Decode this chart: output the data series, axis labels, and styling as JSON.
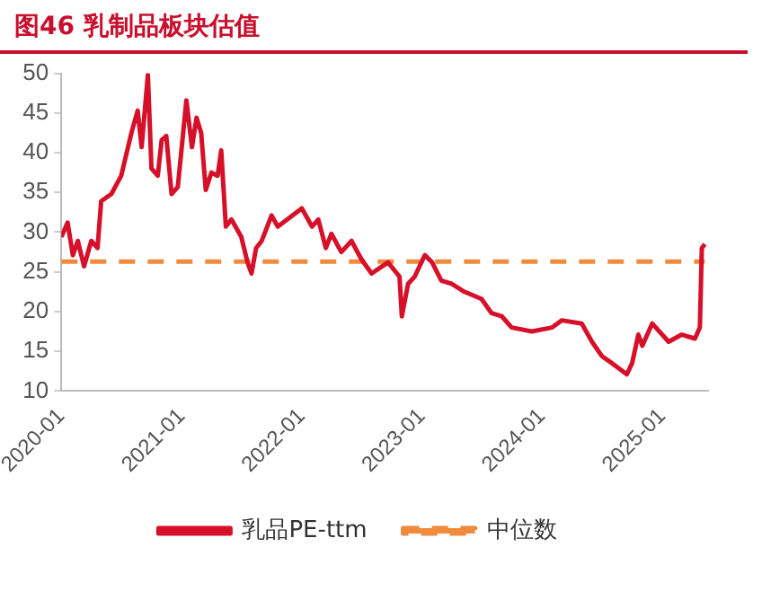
{
  "chart_data": {
    "type": "line",
    "title": "图46  乳制品板块估值",
    "xlim": [
      "2020-01",
      "2025-05-20"
    ],
    "xticks": [
      "2020-01",
      "2021-01",
      "2022-01",
      "2023-01",
      "2024-01",
      "2025-01"
    ],
    "ylim": [
      10,
      50
    ],
    "yticks": [
      10,
      15,
      20,
      25,
      30,
      35,
      40,
      45,
      50
    ],
    "grid": false,
    "legend": "bottom",
    "marker": "none",
    "series": [
      {
        "name": "乳品PE-ttm",
        "color": "#d7102a",
        "line_style": "solid",
        "x": [
          "2020-01-01",
          "2020-01-20",
          "2020-02-05",
          "2020-02-20",
          "2020-03-10",
          "2020-04-01",
          "2020-04-20",
          "2020-05-01",
          "2020-06-01",
          "2020-07-01",
          "2020-08-01",
          "2020-08-20",
          "2020-09-01",
          "2020-09-20",
          "2020-10-01",
          "2020-10-20",
          "2020-11-01",
          "2020-11-15",
          "2020-12-01",
          "2020-12-20",
          "2021-01-01",
          "2021-01-15",
          "2021-02-01",
          "2021-02-15",
          "2021-03-01",
          "2021-03-15",
          "2021-04-01",
          "2021-04-20",
          "2021-05-01",
          "2021-05-15",
          "2021-06-01",
          "2021-07-01",
          "2021-07-20",
          "2021-08-01",
          "2021-08-15",
          "2021-09-01",
          "2021-10-01",
          "2021-10-20",
          "2022-01-01",
          "2022-02-01",
          "2022-02-20",
          "2022-03-15",
          "2022-04-01",
          "2022-05-01",
          "2022-06-01",
          "2022-07-01",
          "2022-08-01",
          "2022-09-20",
          "2022-10-25",
          "2022-11-01",
          "2022-11-20",
          "2022-12-10",
          "2023-01-10",
          "2023-02-01",
          "2023-03-01",
          "2023-04-01",
          "2023-05-10",
          "2023-07-01",
          "2023-08-01",
          "2023-09-01",
          "2023-10-01",
          "2023-12-01",
          "2024-02-01",
          "2024-03-01",
          "2024-05-01",
          "2024-06-01",
          "2024-07-01",
          "2024-08-01",
          "2024-09-15",
          "2024-10-01",
          "2024-10-20",
          "2024-11-01",
          "2024-12-01",
          "2025-01-20",
          "2025-03-01",
          "2025-04-10",
          "2025-04-25",
          "2025-05-01",
          "2025-05-10"
        ],
        "values": [
          29.4,
          31.2,
          27.1,
          28.9,
          25.7,
          28.9,
          28,
          33.9,
          34.8,
          37.1,
          42.5,
          45.3,
          40.7,
          49.8,
          38,
          37.1,
          41.6,
          42.1,
          34.8,
          35.7,
          40.7,
          46.6,
          40.7,
          44.4,
          42.5,
          35.3,
          37.5,
          37.1,
          40.3,
          30.7,
          31.6,
          29.4,
          26.2,
          24.8,
          28,
          28.9,
          32.1,
          30.7,
          33,
          30.7,
          31.6,
          28,
          29.8,
          27.5,
          28.9,
          26.6,
          24.8,
          26.2,
          24.4,
          19.4,
          23.5,
          24.4,
          27.1,
          26.2,
          23.9,
          23.5,
          22.5,
          21.6,
          19.8,
          19.4,
          18,
          17.5,
          18,
          18.9,
          18.5,
          16.2,
          14.4,
          13.5,
          12.1,
          13.5,
          17.1,
          15.7,
          18.5,
          16.2,
          17.1,
          16.6,
          18,
          28,
          28.5
        ]
      },
      {
        "name": "中位数",
        "color": "#f08a3c",
        "line_style": "dashed",
        "x": [
          "2020-01-01",
          "2025-05-10"
        ],
        "values": [
          26.3,
          26.3
        ]
      }
    ]
  }
}
